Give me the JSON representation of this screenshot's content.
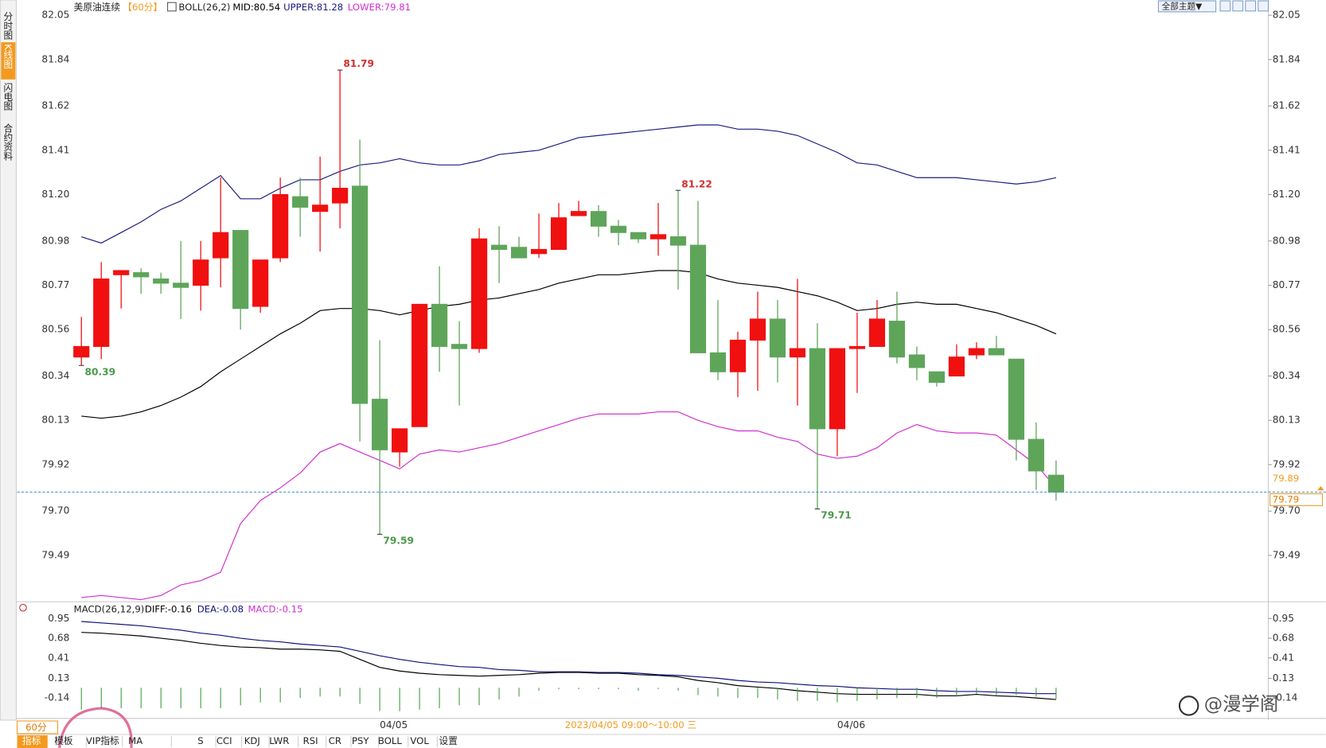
{
  "sidebar": [
    "分时图",
    "K线图",
    "闪电图",
    "合约资料"
  ],
  "top_right": "全部主题▼",
  "status": "2023/04/05 09:00～10:00 三",
  "watermark": "@漫学阁",
  "toolbar": {
    "period": "60分",
    "items": [
      "指标",
      "模板",
      "VIP指标",
      "MA",
      "S",
      "CCI",
      "KDJ",
      "LWR",
      "RSI",
      "CR",
      "PSY",
      "BOLL",
      "VOL",
      "设置"
    ]
  },
  "chart_data": [
    {
      "type": "candlestick",
      "title": "美原油连续",
      "subtitle": "【60分】",
      "indicator": "BOLL(26,2)",
      "up_color": "#f01010",
      "down_color": "#5ea55a",
      "categories": [
        null,
        null,
        null,
        null,
        null,
        null,
        null,
        null,
        null,
        null,
        null,
        null,
        null,
        null,
        null,
        null,
        "04/05",
        null,
        null,
        null,
        null,
        null,
        null,
        null,
        null,
        null,
        null,
        null,
        null,
        null,
        null,
        null,
        null,
        null,
        null,
        null,
        null,
        null,
        null,
        "04/06",
        null,
        null,
        null,
        null,
        null,
        null,
        null,
        null,
        null,
        null
      ],
      "open": [
        80.43,
        80.48,
        80.82,
        80.83,
        80.8,
        80.78,
        80.77,
        80.9,
        81.03,
        80.67,
        80.9,
        81.19,
        81.12,
        81.16,
        81.24,
        80.23,
        79.98,
        80.1,
        80.68,
        80.49,
        80.47,
        80.96,
        80.95,
        80.92,
        80.94,
        81.1,
        81.12,
        81.05,
        81.02,
        80.99,
        81.0,
        80.96,
        80.45,
        80.36,
        80.51,
        80.61,
        80.43,
        80.47,
        80.09,
        80.47,
        80.48,
        80.6,
        80.44,
        80.36,
        80.34,
        80.44,
        80.47,
        80.42,
        80.04,
        79.87
      ],
      "high": [
        80.62,
        80.88,
        80.84,
        80.85,
        80.83,
        80.98,
        80.98,
        81.28,
        81.03,
        80.89,
        81.28,
        81.28,
        81.38,
        81.79,
        81.46,
        80.51,
        80.09,
        80.68,
        80.86,
        80.6,
        81.04,
        81.05,
        81.0,
        81.11,
        81.16,
        81.17,
        81.15,
        81.08,
        81.02,
        81.16,
        81.22,
        81.17,
        80.7,
        80.55,
        80.74,
        80.7,
        80.8,
        80.59,
        80.47,
        80.64,
        80.7,
        80.74,
        80.48,
        80.36,
        80.49,
        80.5,
        80.53,
        80.42,
        80.12,
        79.94
      ],
      "low": [
        80.39,
        80.42,
        80.66,
        80.73,
        80.73,
        80.61,
        80.65,
        80.76,
        80.56,
        80.64,
        80.88,
        81.0,
        80.93,
        81.04,
        80.03,
        79.59,
        79.91,
        80.1,
        80.36,
        80.2,
        80.45,
        80.78,
        80.9,
        80.9,
        80.94,
        81.1,
        81.0,
        80.96,
        80.97,
        80.91,
        80.75,
        80.45,
        80.32,
        80.24,
        80.27,
        80.31,
        80.2,
        79.71,
        79.96,
        80.26,
        80.48,
        80.4,
        80.32,
        80.29,
        80.34,
        80.42,
        80.44,
        79.94,
        79.8,
        79.75
      ],
      "close": [
        80.48,
        80.8,
        80.84,
        80.81,
        80.78,
        80.76,
        80.89,
        81.02,
        80.66,
        80.89,
        81.2,
        81.14,
        81.15,
        81.23,
        80.21,
        79.99,
        80.09,
        80.68,
        80.48,
        80.47,
        80.99,
        80.94,
        80.9,
        80.94,
        81.09,
        81.12,
        81.05,
        81.02,
        80.99,
        81.01,
        80.96,
        80.45,
        80.36,
        80.51,
        80.61,
        80.43,
        80.47,
        80.09,
        80.47,
        80.48,
        80.61,
        80.43,
        80.38,
        80.31,
        80.43,
        80.47,
        80.44,
        80.04,
        79.89,
        79.79
      ],
      "series": [
        {
          "name": "MID:80.54",
          "color": "#000000",
          "values": [
            80.15,
            80.14,
            80.15,
            80.17,
            80.2,
            80.24,
            80.29,
            80.36,
            80.42,
            80.48,
            80.54,
            80.59,
            80.65,
            80.66,
            80.66,
            80.65,
            80.63,
            80.65,
            80.67,
            80.68,
            80.7,
            80.71,
            80.73,
            80.75,
            80.78,
            80.8,
            80.82,
            80.82,
            80.83,
            80.84,
            80.84,
            80.83,
            80.8,
            80.78,
            80.77,
            80.76,
            80.74,
            80.72,
            80.69,
            80.65,
            80.66,
            80.68,
            80.69,
            80.68,
            80.68,
            80.66,
            80.64,
            80.61,
            80.58,
            80.54
          ]
        },
        {
          "name": "UPPER:81.28",
          "color": "#1c1c80",
          "values": [
            81.0,
            80.97,
            81.02,
            81.07,
            81.13,
            81.17,
            81.23,
            81.29,
            81.18,
            81.18,
            81.23,
            81.27,
            81.27,
            81.31,
            81.34,
            81.35,
            81.37,
            81.35,
            81.34,
            81.34,
            81.36,
            81.39,
            81.4,
            81.41,
            81.44,
            81.47,
            81.48,
            81.49,
            81.5,
            81.51,
            81.52,
            81.53,
            81.53,
            81.51,
            81.51,
            81.5,
            81.48,
            81.44,
            81.4,
            81.35,
            81.34,
            81.31,
            81.28,
            81.28,
            81.28,
            81.27,
            81.26,
            81.25,
            81.26,
            81.28
          ]
        },
        {
          "name": "LOWER:79.81",
          "color": "#d030d0",
          "values": [
            79.29,
            79.3,
            79.29,
            79.28,
            79.3,
            79.35,
            79.37,
            79.41,
            79.64,
            79.75,
            79.81,
            79.88,
            79.98,
            80.02,
            79.98,
            79.94,
            79.9,
            79.97,
            79.99,
            79.98,
            80.0,
            80.02,
            80.05,
            80.08,
            80.11,
            80.14,
            80.16,
            80.16,
            80.16,
            80.17,
            80.17,
            80.13,
            80.1,
            80.08,
            80.08,
            80.05,
            80.03,
            79.97,
            79.95,
            79.96,
            80.0,
            80.07,
            80.11,
            80.08,
            80.07,
            80.07,
            80.06,
            79.99,
            79.92,
            79.81
          ]
        }
      ],
      "ylim": [
        79.27,
        82.05
      ],
      "yticks": [
        82.05,
        81.84,
        81.62,
        81.41,
        {
          "value": 81.2,
          "label": "81.20"
        },
        80.98,
        80.77,
        80.56,
        80.34,
        80.13,
        79.92,
        {
          "value": 79.7,
          "label": "79.70"
        },
        79.49
      ],
      "grid": false
    },
    {
      "type": "macd",
      "title": "MACD(26,12,9)",
      "up_color": "#f01010",
      "down_color": "#3a9a3a",
      "series": [
        {
          "name": "DIFF:-0.16",
          "color": "#000000",
          "values": [
            0.76,
            0.75,
            0.73,
            0.71,
            0.68,
            0.65,
            0.61,
            0.58,
            0.56,
            0.55,
            0.53,
            0.53,
            0.52,
            0.5,
            0.39,
            0.28,
            0.23,
            0.2,
            0.18,
            0.17,
            0.16,
            0.17,
            0.18,
            0.2,
            0.21,
            0.21,
            0.2,
            0.2,
            0.18,
            0.17,
            0.15,
            0.1,
            0.07,
            0.03,
            0.01,
            -0.01,
            -0.04,
            -0.06,
            -0.08,
            -0.09,
            -0.09,
            -0.09,
            -0.09,
            -0.11,
            -0.11,
            -0.09,
            -0.11,
            -0.12,
            -0.14,
            -0.16
          ]
        },
        {
          "name": "DEA:-0.08",
          "color": "#10107a",
          "values": [
            0.91,
            0.89,
            0.87,
            0.85,
            0.82,
            0.79,
            0.75,
            0.72,
            0.68,
            0.65,
            0.63,
            0.6,
            0.58,
            0.56,
            0.5,
            0.44,
            0.39,
            0.35,
            0.32,
            0.29,
            0.28,
            0.25,
            0.24,
            0.22,
            0.22,
            0.22,
            0.21,
            0.21,
            0.2,
            0.18,
            0.17,
            0.15,
            0.13,
            0.1,
            0.08,
            0.07,
            0.05,
            0.03,
            0.02,
            0.0,
            -0.01,
            -0.02,
            -0.02,
            -0.04,
            -0.05,
            -0.05,
            -0.06,
            -0.07,
            -0.08,
            -0.08
          ]
        },
        {
          "name": "MACD:-0.15",
          "color": "#d030d0",
          "type": "bar",
          "values": [
            -0.3,
            -0.28,
            -0.28,
            -0.28,
            -0.28,
            -0.28,
            -0.28,
            -0.28,
            -0.24,
            -0.2,
            -0.2,
            -0.14,
            -0.12,
            -0.12,
            -0.22,
            -0.32,
            -0.32,
            -0.3,
            -0.28,
            -0.24,
            -0.24,
            -0.16,
            -0.12,
            -0.04,
            -0.02,
            -0.02,
            -0.02,
            -0.02,
            -0.04,
            -0.02,
            -0.04,
            -0.1,
            -0.12,
            -0.14,
            -0.14,
            -0.16,
            -0.18,
            -0.18,
            -0.2,
            -0.18,
            -0.16,
            -0.14,
            -0.14,
            -0.14,
            -0.12,
            -0.08,
            -0.1,
            -0.1,
            -0.12,
            -0.15
          ]
        }
      ],
      "ylim": [
        -0.42,
        1.11
      ],
      "yticks": [
        0.95,
        0.68,
        0.41,
        0.13,
        -0.14
      ],
      "grid": false
    }
  ]
}
